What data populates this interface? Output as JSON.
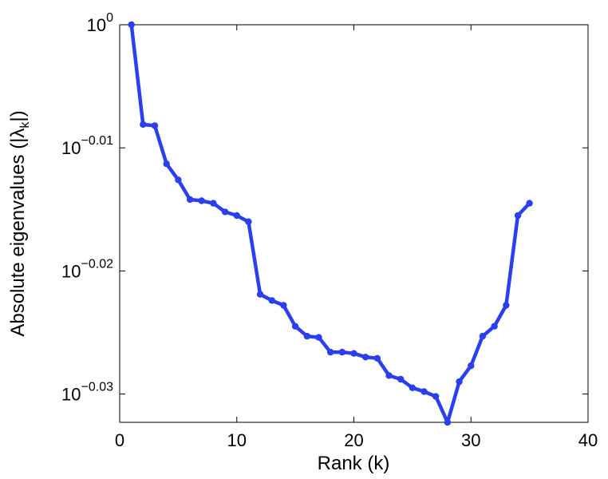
{
  "chart_data": {
    "type": "line",
    "xlabel": "Rank (k)",
    "ylabel": "Absolute eigenvalues (|λk|)",
    "ylabel_main": "Absolute eigenvalues (|λ",
    "ylabel_sub": "k",
    "ylabel_end": "|)",
    "y_scale": "log10",
    "xlim": [
      0,
      40
    ],
    "ylim_exponent": [
      -0.0323,
      0
    ],
    "grid": false,
    "x_ticks": [
      0,
      10,
      20,
      30,
      40
    ],
    "x_tick_labels": [
      "0",
      "10",
      "20",
      "30",
      "40"
    ],
    "y_ticks_exponent": [
      0,
      -0.01,
      -0.02,
      -0.03
    ],
    "y_tick_labels": [
      {
        "base": "10",
        "exp": "0"
      },
      {
        "base": "10",
        "exp": "−0.01"
      },
      {
        "base": "10",
        "exp": "−0.02"
      },
      {
        "base": "10",
        "exp": "−0.03"
      }
    ],
    "series": [
      {
        "color": "#2a3ff0",
        "x": [
          1,
          2,
          3,
          4,
          5,
          6,
          7,
          8,
          9,
          10,
          11,
          12,
          13,
          14,
          15,
          16,
          17,
          18,
          19,
          20,
          21,
          22,
          23,
          24,
          25,
          26,
          27,
          28,
          29,
          30,
          31,
          32,
          33,
          34,
          35
        ],
        "y_exponent": [
          0,
          -0.0081,
          -0.0082,
          -0.0113,
          -0.0126,
          -0.0142,
          -0.0143,
          -0.0145,
          -0.0152,
          -0.0155,
          -0.016,
          -0.0219,
          -0.0224,
          -0.0228,
          -0.0245,
          -0.0253,
          -0.0254,
          -0.0266,
          -0.0266,
          -0.0267,
          -0.027,
          -0.0271,
          -0.0285,
          -0.0288,
          -0.0295,
          -0.0298,
          -0.0302,
          -0.0323,
          -0.029,
          -0.0277,
          -0.0253,
          -0.0245,
          -0.0228,
          -0.0155,
          -0.0145
        ]
      }
    ]
  }
}
